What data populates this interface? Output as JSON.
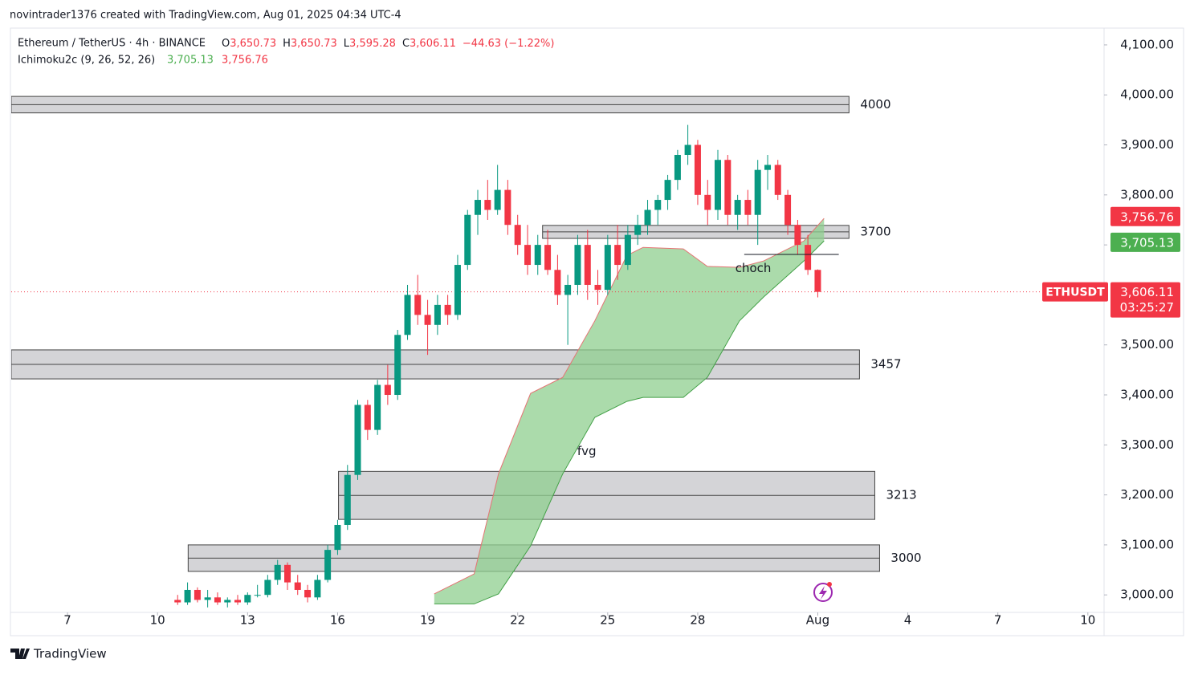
{
  "chart_data": {
    "type": "candlestick",
    "attribution": "novintrader1376 created with TradingView.com, Aug 01, 2025 04:34 UTC-4",
    "symbol": "Ethereum / TetherUS · 4h · BINANCE",
    "ohlc": [
      {
        "name": "O",
        "value": 3650.73,
        "label": "3,650.73"
      },
      {
        "name": "H",
        "value": 3650.73,
        "label": "3,650.73"
      },
      {
        "name": "L",
        "value": 3595.28,
        "label": "3,595.28"
      },
      {
        "name": "C",
        "value": 3606.11,
        "label": "3,606.11"
      }
    ],
    "change": "−44.63 (−1.22%)",
    "indicator": "Ichimoku2c (9, 26, 52, 26)",
    "price_tags": [
      {
        "value": 3756.76,
        "label": "3,756.76",
        "color": "#f23645"
      },
      {
        "value": 3705.13,
        "label": "3,705.13",
        "color": "#4caf50"
      }
    ],
    "last_price": {
      "symbol": "ETHUSDT",
      "value": 3606.11,
      "label": "3,606.11",
      "countdown": "03:25:27",
      "color": "#f23645"
    },
    "xlim": [
      5.125,
      41.54
    ],
    "xticks": [
      7,
      10,
      13,
      16,
      19,
      22,
      25,
      28,
      {
        "value": 32,
        "label": "Aug"
      },
      {
        "value": 35,
        "label": "4"
      },
      {
        "value": 38,
        "label": "7"
      },
      {
        "value": 41,
        "label": "10"
      }
    ],
    "ylim": [
      2965,
      4132
    ],
    "yticks": [
      {
        "value": 3000,
        "label": "3,000.00"
      },
      {
        "value": 3100,
        "label": "3,100.00"
      },
      {
        "value": 3200,
        "label": "3,200.00"
      },
      {
        "value": 3300,
        "label": "3,300.00"
      },
      {
        "value": 3400,
        "label": "3,400.00"
      },
      {
        "value": 3500,
        "label": "3,500.00"
      },
      {
        "value": 3600,
        "label": "3,600.00"
      },
      {
        "value": 3700,
        "label": "3,700.00"
      },
      {
        "value": 3800,
        "label": "3,800.00"
      },
      {
        "value": 3900,
        "label": "3,900.00"
      },
      {
        "value": 4000,
        "label": "4,000.00"
      },
      {
        "value": 4100,
        "label": "4,100.00"
      }
    ],
    "up_color": "#089981",
    "down_color": "#f23645",
    "candles": {
      "x": [
        10.67,
        11,
        11.33,
        11.67,
        12,
        12.33,
        12.67,
        13,
        13.33,
        13.67,
        14,
        14.33,
        14.67,
        15,
        15.33,
        15.67,
        16,
        16.33,
        16.67,
        17,
        17.33,
        17.67,
        18,
        18.33,
        18.67,
        19,
        19.33,
        19.67,
        20,
        20.33,
        20.67,
        21,
        21.33,
        21.67,
        22,
        22.33,
        22.67,
        23,
        23.33,
        23.67,
        24,
        24.33,
        24.67,
        25,
        25.33,
        25.67,
        26,
        26.33,
        26.67,
        27,
        27.33,
        27.67,
        28,
        28.33,
        28.67,
        29,
        29.33,
        29.67,
        30,
        30.33,
        30.67,
        31,
        31.33,
        31.67,
        32
      ],
      "open": [
        2990,
        2985,
        3010,
        2990,
        2995,
        2985,
        2990,
        2985,
        3000,
        3000,
        3030,
        3060,
        3025,
        3010,
        2995,
        3030,
        3090,
        3140,
        3240,
        3380,
        3330,
        3420,
        3400,
        3520,
        3600,
        3560,
        3540,
        3580,
        3560,
        3660,
        3760,
        3790,
        3770,
        3810,
        3740,
        3700,
        3660,
        3700,
        3650,
        3600,
        3620,
        3700,
        3620,
        3610,
        3700,
        3660,
        3720,
        3740,
        3770,
        3790,
        3830,
        3880,
        3900,
        3800,
        3770,
        3870,
        3760,
        3790,
        3760,
        3850,
        3860,
        3800,
        3740,
        3700,
        3650
      ],
      "high": [
        3000,
        3025,
        3015,
        3010,
        3005,
        2995,
        3000,
        3005,
        3020,
        3040,
        3070,
        3065,
        3040,
        3020,
        3040,
        3100,
        3150,
        3260,
        3390,
        3390,
        3430,
        3460,
        3530,
        3620,
        3640,
        3590,
        3600,
        3600,
        3680,
        3770,
        3810,
        3830,
        3860,
        3830,
        3760,
        3740,
        3720,
        3730,
        3680,
        3640,
        3720,
        3730,
        3650,
        3720,
        3740,
        3740,
        3760,
        3790,
        3800,
        3840,
        3890,
        3940,
        3910,
        3830,
        3890,
        3880,
        3800,
        3810,
        3870,
        3880,
        3870,
        3810,
        3750,
        3720,
        3651
      ],
      "low": [
        2980,
        2980,
        2985,
        2975,
        2980,
        2975,
        2980,
        2980,
        2995,
        2995,
        3020,
        3010,
        3000,
        2985,
        2990,
        3025,
        3080,
        3130,
        3230,
        3310,
        3320,
        3380,
        3390,
        3510,
        3540,
        3480,
        3520,
        3540,
        3550,
        3650,
        3720,
        3750,
        3760,
        3720,
        3680,
        3640,
        3640,
        3640,
        3580,
        3500,
        3600,
        3590,
        3580,
        3600,
        3630,
        3650,
        3700,
        3720,
        3740,
        3770,
        3810,
        3860,
        3780,
        3740,
        3750,
        3740,
        3730,
        3740,
        3700,
        3810,
        3790,
        3720,
        3680,
        3640,
        3595
      ],
      "close": [
        2985,
        3010,
        2990,
        2995,
        2985,
        2990,
        2985,
        3000,
        3000,
        3030,
        3060,
        3025,
        3010,
        2995,
        3030,
        3090,
        3140,
        3240,
        3380,
        3330,
        3420,
        3400,
        3520,
        3600,
        3560,
        3540,
        3580,
        3560,
        3660,
        3760,
        3790,
        3770,
        3810,
        3740,
        3700,
        3660,
        3700,
        3650,
        3600,
        3620,
        3700,
        3620,
        3610,
        3700,
        3660,
        3720,
        3740,
        3770,
        3790,
        3830,
        3880,
        3900,
        3800,
        3770,
        3870,
        3760,
        3790,
        3760,
        3850,
        3860,
        3800,
        3740,
        3700,
        3650,
        3606
      ]
    },
    "cloud": {
      "x": [
        19.22,
        20.55,
        21.36,
        22.43,
        23.5,
        24.57,
        25.64,
        26.18,
        27.52,
        28.32,
        29.39,
        30.2,
        31.54,
        32.21
      ],
      "upper": [
        3002,
        3042,
        3242,
        3403,
        3435,
        3548,
        3679,
        3695,
        3692,
        3657,
        3655,
        3668,
        3708,
        3753
      ],
      "lower": [
        2982,
        2982,
        3002,
        3098,
        3242,
        3355,
        3387,
        3395,
        3395,
        3435,
        3548,
        3596,
        3668,
        3708
      ],
      "fill": "#8fcf8f",
      "upper_color": "#e57373",
      "lower_color": "#43a047"
    },
    "zones": [
      {
        "value": 4000,
        "top": 3997,
        "bottom": 3964,
        "start": 5.125,
        "end": 33.04
      },
      {
        "value": 3700,
        "top": 3739,
        "bottom": 3713,
        "start": 22.83,
        "end": 33.04
      },
      {
        "value": 3457,
        "top": 3490,
        "bottom": 3432,
        "start": 5.125,
        "end": 33.39
      },
      {
        "value": 3213,
        "top": 3247,
        "bottom": 3151,
        "start": 16.03,
        "end": 33.9
      },
      {
        "value": 3000,
        "top": 3100,
        "bottom": 3047,
        "start": 11.02,
        "end": 34.06
      }
    ],
    "choch_line": {
      "start": 29.55,
      "end": 32.7,
      "value": 3681
    },
    "annotations": [
      {
        "text": "choch",
        "x": 29.85,
        "y": 3653
      },
      {
        "text": "fvg",
        "x": 24.3,
        "y": 3287
      }
    ],
    "footer": "TradingView"
  }
}
